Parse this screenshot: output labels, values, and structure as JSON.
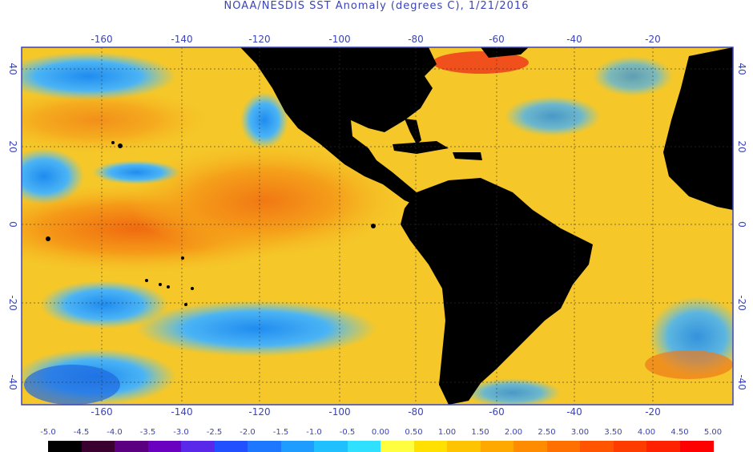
{
  "title": "NOAA/NESDIS SST Anomaly (degrees C), 1/21/2016",
  "map": {
    "longitude_ticks": [
      "-160",
      "-140",
      "-120",
      "-100",
      "-80",
      "-60",
      "-40",
      "-20"
    ],
    "latitude_ticks": [
      "40",
      "20",
      "0",
      "-20",
      "-40"
    ],
    "land_color": "#000000",
    "grid": "dotted",
    "legend_position": "bottom"
  },
  "colorbar": {
    "labels": [
      "-5.0",
      "-4.5",
      "-4.0",
      "-3.5",
      "-3.0",
      "-2.5",
      "-2.0",
      "-1.5",
      "-1.0",
      "-0.5",
      "0.00",
      "0.50",
      "1.00",
      "1.50",
      "2.00",
      "2.50",
      "3.00",
      "3.50",
      "4.00",
      "4.50",
      "5.00"
    ],
    "colors": [
      "#000000",
      "#3a0030",
      "#5a0080",
      "#6a00c0",
      "#5a28e8",
      "#2050ff",
      "#1c78ff",
      "#1e9cff",
      "#20c0ff",
      "#30e0ff",
      "#ffff40",
      "#ffe000",
      "#ffc400",
      "#ffa800",
      "#ff8c00",
      "#ff7000",
      "#ff5400",
      "#ff3c00",
      "#ff2200",
      "#ff0000"
    ]
  }
}
